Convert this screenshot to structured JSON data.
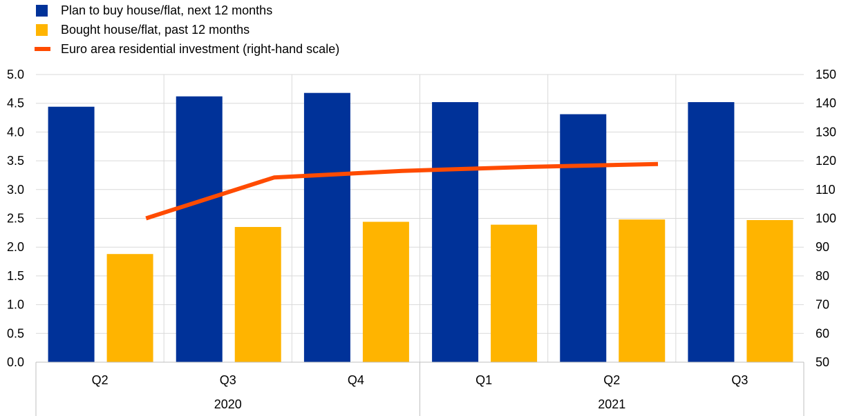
{
  "chart_data": {
    "type": "bar",
    "categories": [
      "Q2",
      "Q3",
      "Q4",
      "Q1",
      "Q2",
      "Q3"
    ],
    "category_groups": [
      {
        "label": "2020",
        "span": 3
      },
      {
        "label": "2021",
        "span": 3
      }
    ],
    "series": [
      {
        "name": "Plan to buy house/flat, next 12 months",
        "type": "bar",
        "axis": "left",
        "color": "#003299",
        "values": [
          4.44,
          4.62,
          4.68,
          4.52,
          4.31,
          4.52
        ]
      },
      {
        "name": "Bought house/flat, past 12 months",
        "type": "bar",
        "axis": "left",
        "color": "#FFB400",
        "values": [
          1.88,
          2.35,
          2.44,
          2.39,
          2.48,
          2.47
        ]
      },
      {
        "name": "Euro area residential investment (right-hand scale)",
        "type": "line",
        "axis": "right",
        "color": "#FF4B00",
        "values": [
          100,
          114.2,
          116.5,
          117.9,
          118.9,
          null
        ]
      }
    ],
    "y_left": {
      "min": 0,
      "max": 5,
      "ticks": [
        "0.0",
        "0.5",
        "1.0",
        "1.5",
        "2.0",
        "2.5",
        "3.0",
        "3.5",
        "4.0",
        "4.5",
        "5.0"
      ]
    },
    "y_right": {
      "min": 50,
      "max": 150,
      "ticks": [
        "50",
        "60",
        "70",
        "80",
        "90",
        "100",
        "110",
        "120",
        "130",
        "140",
        "150"
      ]
    },
    "grid": true,
    "legend_position": "top-left"
  }
}
